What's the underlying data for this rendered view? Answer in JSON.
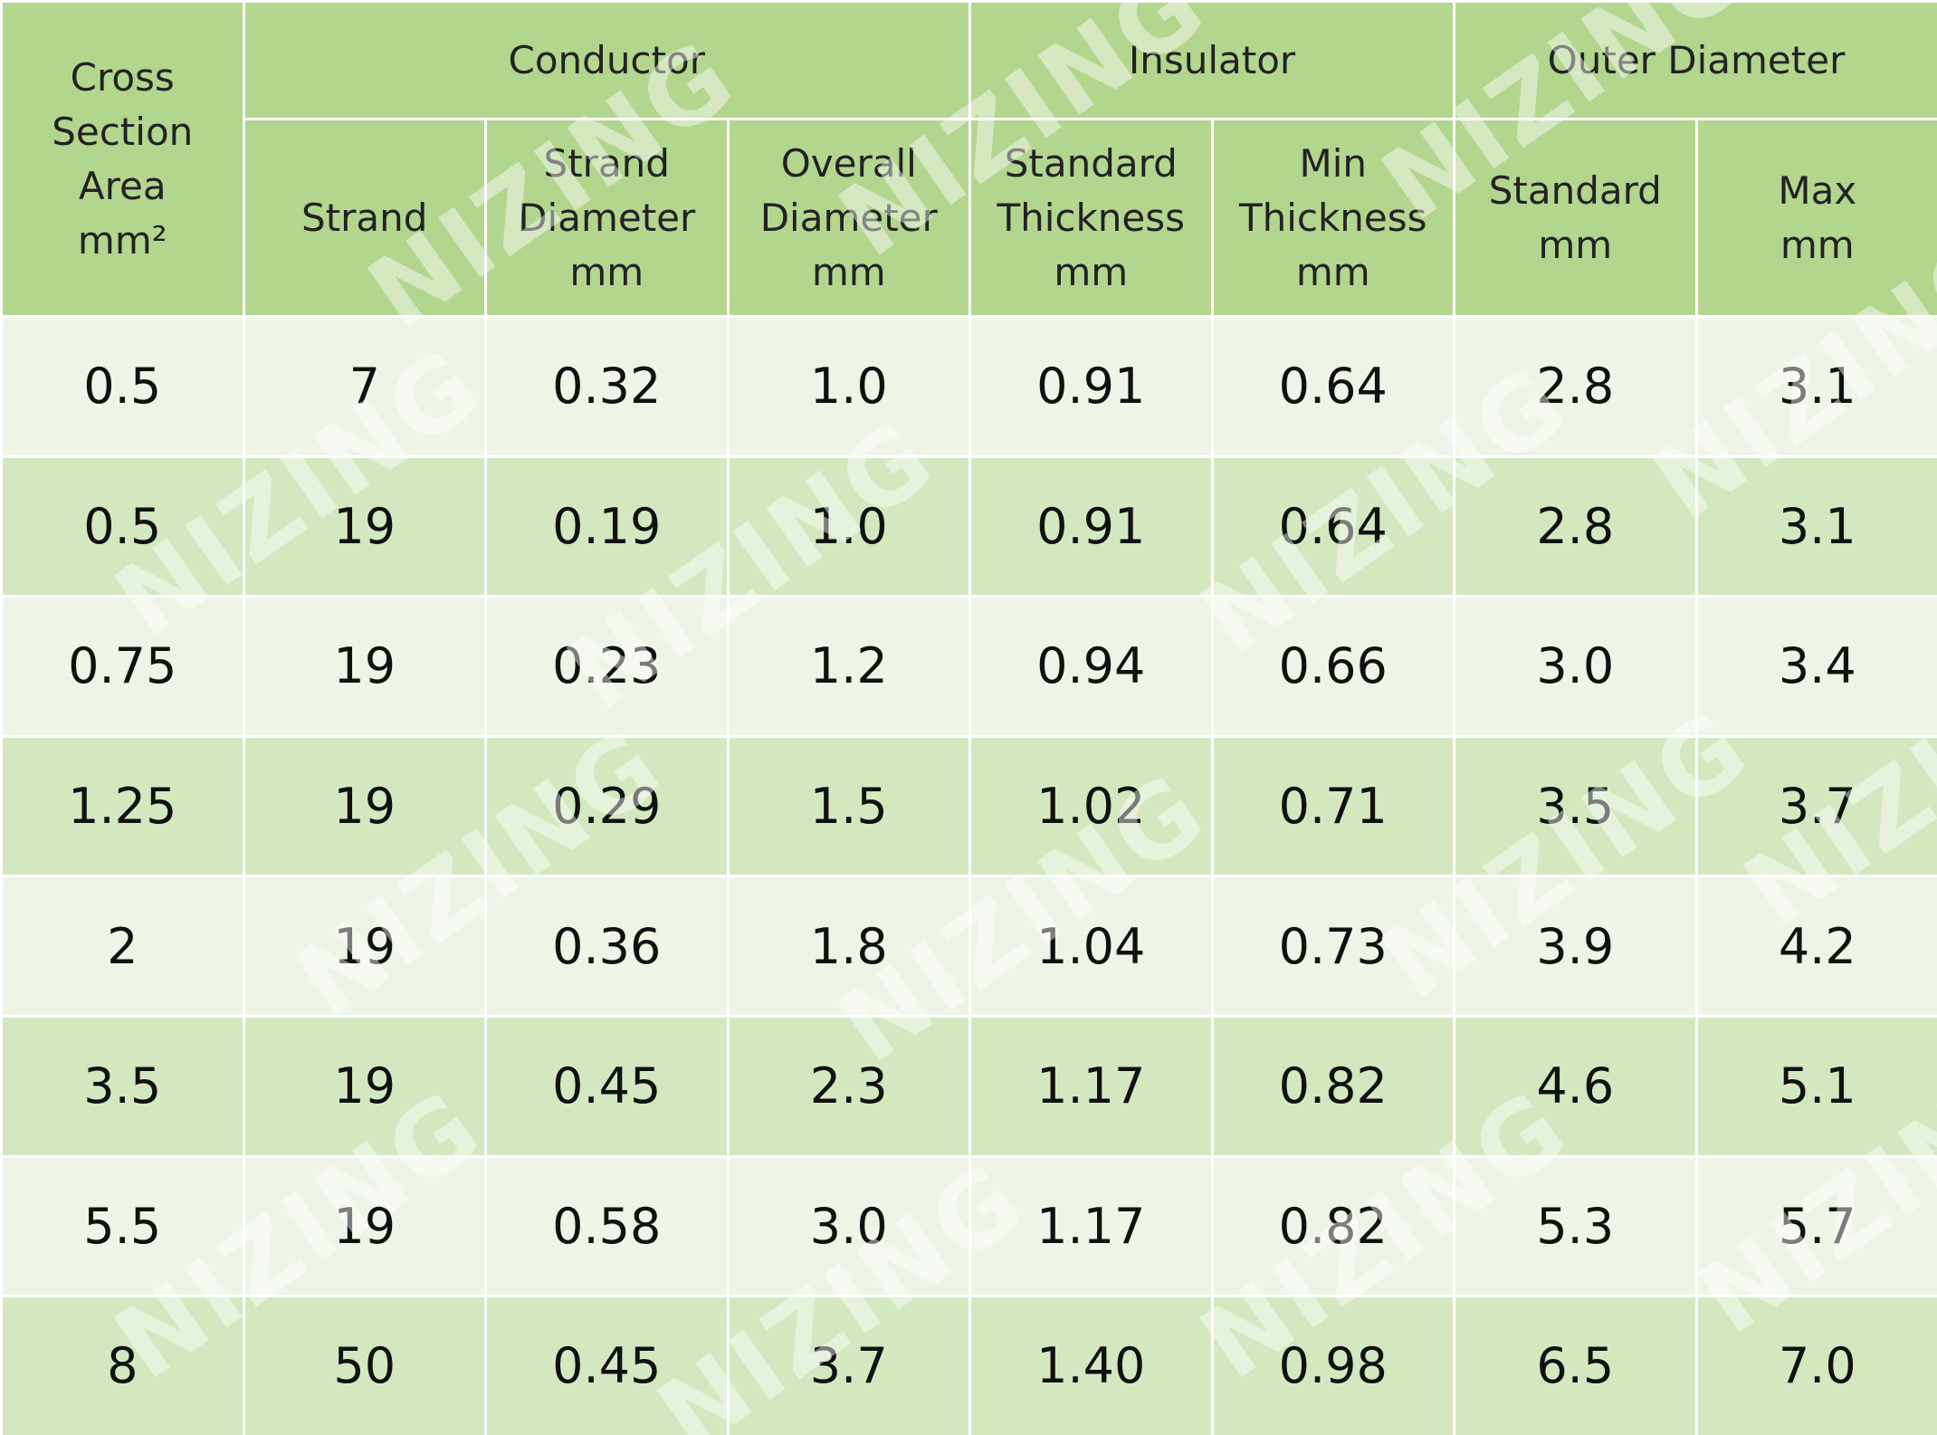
{
  "watermark": "NIZING",
  "header": {
    "first": [
      "Cross",
      "Section Area",
      "mm²"
    ],
    "groups": [
      "Conductor",
      "Insulator",
      "Outer Diameter"
    ],
    "sub": [
      [
        "Strand"
      ],
      [
        "Strand",
        "Diameter",
        "mm"
      ],
      [
        "Overall",
        "Diameter",
        "mm"
      ],
      [
        "Standard",
        "Thickness",
        "mm"
      ],
      [
        "Min",
        "Thickness",
        "mm"
      ],
      [
        "Standard",
        "mm"
      ],
      [
        "Max",
        "mm"
      ]
    ]
  },
  "table": {
    "rows": [
      [
        "0.5",
        "7",
        "0.32",
        "1.0",
        "0.91",
        "0.64",
        "2.8",
        "3.1"
      ],
      [
        "0.5",
        "19",
        "0.19",
        "1.0",
        "0.91",
        "0.64",
        "2.8",
        "3.1"
      ],
      [
        "0.75",
        "19",
        "0.23",
        "1.2",
        "0.94",
        "0.66",
        "3.0",
        "3.4"
      ],
      [
        "1.25",
        "19",
        "0.29",
        "1.5",
        "1.02",
        "0.71",
        "3.5",
        "3.7"
      ],
      [
        "2",
        "19",
        "0.36",
        "1.8",
        "1.04",
        "0.73",
        "3.9",
        "4.2"
      ],
      [
        "3.5",
        "19",
        "0.45",
        "2.3",
        "1.17",
        "0.82",
        "4.6",
        "5.1"
      ],
      [
        "5.5",
        "19",
        "0.58",
        "3.0",
        "1.17",
        "0.82",
        "5.3",
        "5.7"
      ],
      [
        "8",
        "50",
        "0.45",
        "3.7",
        "1.40",
        "0.98",
        "6.5",
        "7.0"
      ]
    ]
  }
}
